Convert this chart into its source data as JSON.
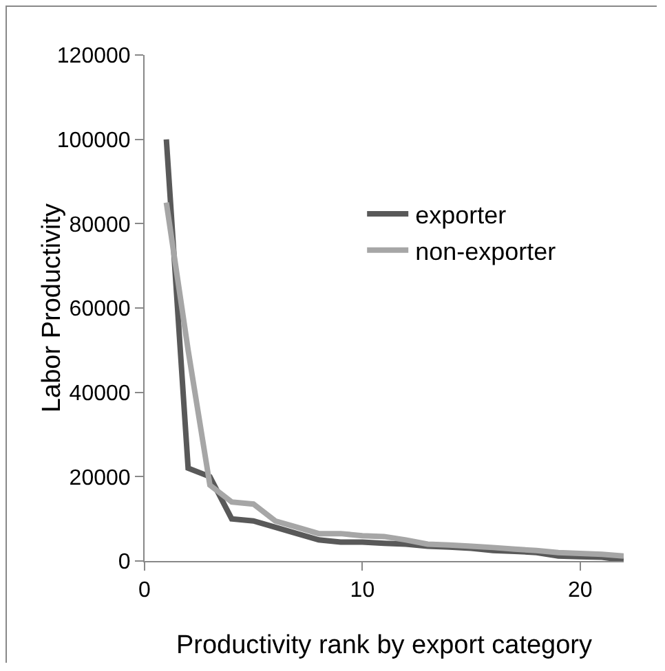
{
  "chart_data": {
    "type": "line",
    "xlabel": "Productivity rank by export category",
    "ylabel": "Labor Productivity",
    "x": [
      1,
      2,
      3,
      4,
      5,
      6,
      7,
      8,
      9,
      10,
      11,
      12,
      13,
      14,
      15,
      16,
      17,
      18,
      19,
      20,
      21,
      22
    ],
    "series": [
      {
        "name": "exporter",
        "color": "#595959",
        "values": [
          100000,
          22000,
          20000,
          10000,
          9500,
          8000,
          6500,
          5000,
          4500,
          4500,
          4200,
          4000,
          3500,
          3300,
          3000,
          2500,
          2300,
          2000,
          1200,
          1000,
          900,
          200
        ]
      },
      {
        "name": "non-exporter",
        "color": "#a6a6a6",
        "values": [
          85000,
          50000,
          18000,
          14000,
          13500,
          9500,
          8000,
          6500,
          6500,
          6000,
          5800,
          5000,
          4000,
          3800,
          3500,
          3200,
          2800,
          2500,
          2000,
          1800,
          1600,
          1200
        ]
      }
    ],
    "xlim": [
      0,
      22
    ],
    "xticks": [
      0,
      10,
      20
    ],
    "ylim": [
      0,
      120000
    ],
    "yticks": [
      0,
      20000,
      40000,
      60000,
      80000,
      100000,
      120000
    ],
    "grid": false,
    "legend": "right",
    "marker": "none",
    "line_style": "solid"
  }
}
